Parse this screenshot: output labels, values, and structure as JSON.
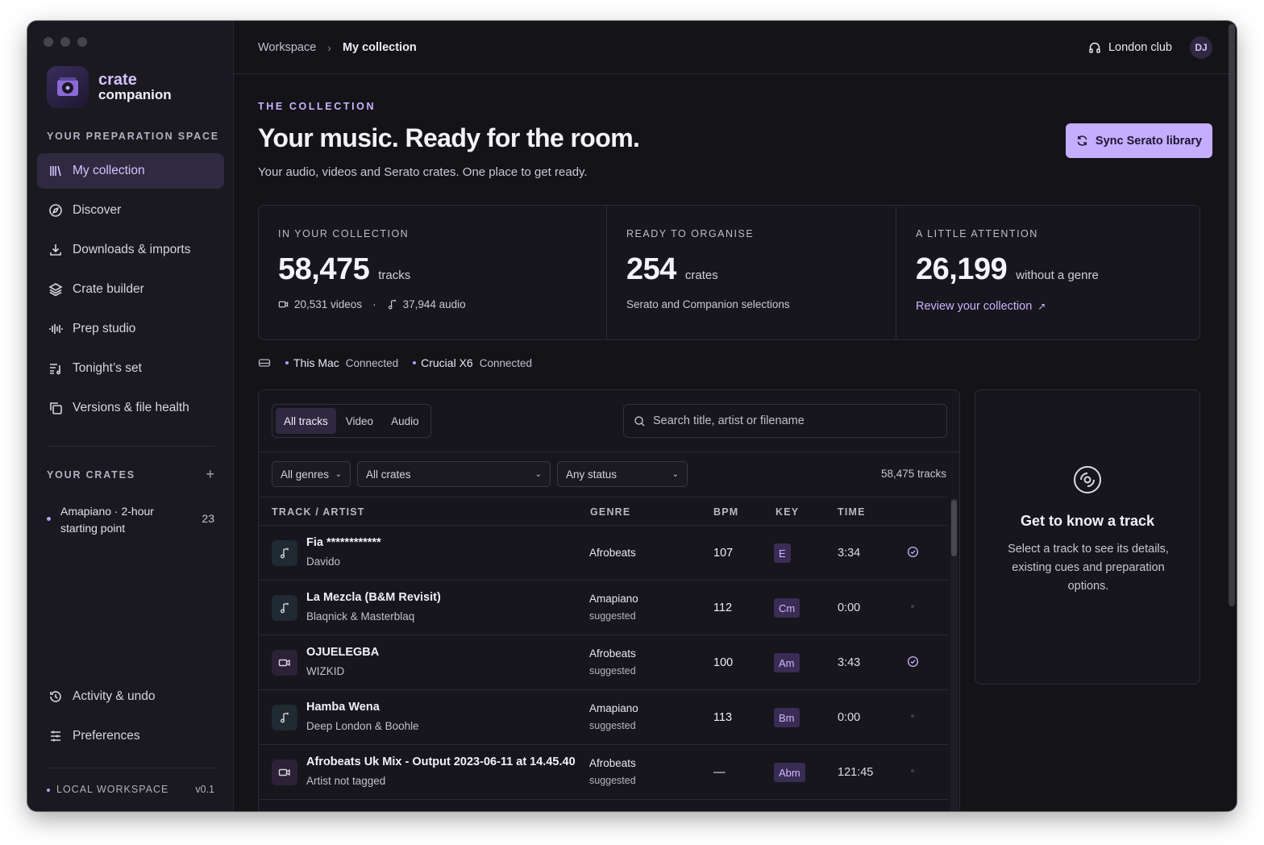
{
  "app": {
    "brand_line1": "crate",
    "brand_line2": "companion"
  },
  "sidebar": {
    "section_label": "YOUR PREPARATION SPACE",
    "items": [
      {
        "label": "My collection",
        "icon": "library-icon",
        "active": true
      },
      {
        "label": "Discover",
        "icon": "compass-icon"
      },
      {
        "label": "Downloads & imports",
        "icon": "download-icon"
      },
      {
        "label": "Crate builder",
        "icon": "layers-icon"
      },
      {
        "label": "Prep studio",
        "icon": "waveform-icon"
      },
      {
        "label": "Tonight’s set",
        "icon": "setlist-icon"
      },
      {
        "label": "Versions & file health",
        "icon": "copy-icon"
      }
    ],
    "crates_label": "YOUR CRATES",
    "add_crate_icon": "plus-icon",
    "crates": [
      {
        "name": "Amapiano · 2-hour starting point",
        "count": "23"
      }
    ],
    "bottom_items": [
      {
        "label": "Activity & undo",
        "icon": "history-icon"
      },
      {
        "label": "Preferences",
        "icon": "sliders-icon"
      }
    ],
    "workspace_label": "LOCAL WORKSPACE",
    "version": "v0.1"
  },
  "header": {
    "breadcrumb": [
      "Workspace",
      "My collection"
    ],
    "venue": "London club",
    "avatar": "DJ"
  },
  "hero": {
    "eyebrow": "THE COLLECTION",
    "title": "Your music. Ready for the room.",
    "subtitle": "Your audio, videos and Serato crates. One place to get ready.",
    "sync_button": "Sync Serato library"
  },
  "stats": {
    "collection": {
      "label": "IN YOUR COLLECTION",
      "value": "58,475",
      "unit": "tracks",
      "videos": "20,531 videos",
      "separator": "·",
      "audio": "37,944 audio"
    },
    "organise": {
      "label": "READY TO ORGANISE",
      "value": "254",
      "unit": "crates",
      "foot": "Serato and Companion selections"
    },
    "attention": {
      "label": "A LITTLE ATTENTION",
      "value": "26,199",
      "unit": "without a genre",
      "link": "Review your collection"
    }
  },
  "devices": [
    {
      "name": "This Mac",
      "status": "Connected"
    },
    {
      "name": "Crucial X6",
      "status": "Connected"
    }
  ],
  "table": {
    "tabs": [
      "All tracks",
      "Video",
      "Audio"
    ],
    "active_tab": "All tracks",
    "search_placeholder": "Search title, artist or filename",
    "filters": [
      "All genres",
      "All crates",
      "Any status"
    ],
    "count": "58,475 tracks",
    "columns": [
      "TRACK / ARTIST",
      "GENRE",
      "BPM",
      "KEY",
      "TIME"
    ],
    "rows": [
      {
        "kind": "audio",
        "title": "Fia ************",
        "artist": "Davido",
        "genre": "Afrobeats",
        "genre_note": "",
        "bpm": "107",
        "key": "E",
        "time": "3:34",
        "status": "check"
      },
      {
        "kind": "audio",
        "title": "La Mezcla (B&M Revisit)",
        "artist": "Blaqnick & Masterblaq",
        "genre": "Amapiano",
        "genre_note": "suggested",
        "bpm": "112",
        "key": "Cm",
        "time": "0:00",
        "status": "dot"
      },
      {
        "kind": "video",
        "title": "OJUELEGBA",
        "artist": "WIZKID",
        "genre": "Afrobeats",
        "genre_note": "suggested",
        "bpm": "100",
        "key": "Am",
        "time": "3:43",
        "status": "check"
      },
      {
        "kind": "audio",
        "title": "Hamba Wena",
        "artist": "Deep London & Boohle",
        "genre": "Amapiano",
        "genre_note": "suggested",
        "bpm": "113",
        "key": "Bm",
        "time": "0:00",
        "status": "dot"
      },
      {
        "kind": "video",
        "title": "Afrobeats Uk Mix - Output 2023-06-11 at 14.45.40",
        "artist": "Artist not tagged",
        "genre": "Afrobeats",
        "genre_note": "suggested",
        "bpm": "—",
        "key": "Abm",
        "time": "121:45",
        "status": "dot"
      }
    ]
  },
  "detail": {
    "icon": "disc-icon",
    "title": "Get to know a track",
    "body": "Select a track to see its details, existing cues and preparation options."
  },
  "colors": {
    "accent": "#c5adff",
    "background": "#141318",
    "sidebar": "#1a1920"
  }
}
